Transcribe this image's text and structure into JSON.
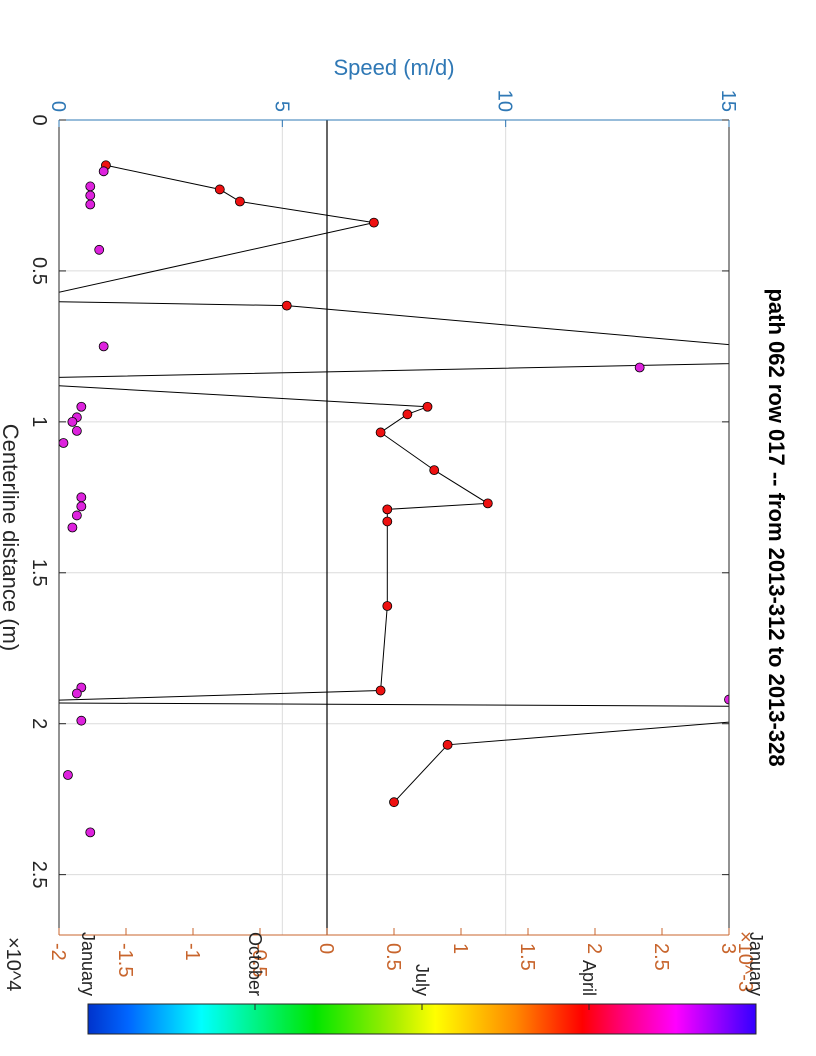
{
  "chart_data": {
    "type": "scatter",
    "title": "path 062 row 017  -- from 2013-312 to 2013-328",
    "xlabel": "Centerline distance (m)",
    "x_exponent": "×10^4",
    "xlim": [
      0,
      27000
    ],
    "xticks": [
      0,
      5000,
      10000,
      15000,
      20000,
      25000
    ],
    "xtick_labels": [
      "0",
      "0.5",
      "1",
      "1.5",
      "2",
      "2.5"
    ],
    "ylabel": "Speed (m/d)",
    "ylim": [
      0,
      15
    ],
    "yticks": [
      0,
      5,
      10,
      15
    ],
    "ytick_labels": [
      "0",
      "5",
      "10",
      "15"
    ],
    "y2_exponent": "×10^-3",
    "y2lim": [
      -0.002,
      0.003
    ],
    "y2ticks": [
      -0.002,
      -0.0015,
      -0.001,
      -0.0005,
      0,
      0.0005,
      0.001,
      0.0015,
      0.002,
      0.0025,
      0.003
    ],
    "y2tick_labels": [
      "-2",
      "-1.5",
      "-1",
      "-0.5",
      "0",
      "0.5",
      "1",
      "1.5",
      "2",
      "2.5",
      "3"
    ],
    "grid": true,
    "speed_points": {
      "color": "#dd22dd",
      "x": [
        1700,
        2200,
        2500,
        2800,
        4300,
        7500,
        8200,
        9500,
        9850,
        10000,
        10300,
        10700,
        12500,
        12800,
        13100,
        13500,
        18800,
        19000,
        19200,
        19900,
        21700,
        23600
      ],
      "values": [
        1.0,
        0.7,
        0.7,
        0.7,
        0.9,
        1.0,
        13.0,
        0.5,
        0.4,
        0.3,
        0.4,
        0.1,
        0.5,
        0.5,
        0.4,
        0.3,
        0.5,
        0.4,
        15.0,
        0.5,
        0.2,
        0.7
      ]
    },
    "slope_series": {
      "color": "#ee1111",
      "x": [
        1500,
        2300,
        2700,
        3400,
        6000,
        6150,
        7950,
        8600,
        9500,
        9750,
        10350,
        11600,
        12700,
        12900,
        13300,
        16100,
        18900,
        19300,
        19450,
        20700,
        22600
      ],
      "values": [
        -0.00165,
        -0.0008,
        -0.00065,
        0.00035,
        -0.0023,
        -0.0003,
        0.0043,
        -0.0028,
        0.00075,
        0.0006,
        0.0004,
        0.0008,
        0.0012,
        0.00045,
        0.00045,
        0.00045,
        0.0004,
        -0.0026,
        0.0044,
        0.0009,
        0.0005
      ],
      "markers": [
        true,
        true,
        true,
        true,
        false,
        true,
        false,
        false,
        true,
        true,
        true,
        true,
        true,
        true,
        true,
        true,
        true,
        false,
        false,
        true,
        true
      ]
    },
    "zero_line": 0,
    "colorbar": {
      "labels": [
        "January",
        "October",
        "July",
        "April",
        "January"
      ],
      "positions": [
        0,
        0.25,
        0.5,
        0.75,
        1.0
      ]
    }
  }
}
